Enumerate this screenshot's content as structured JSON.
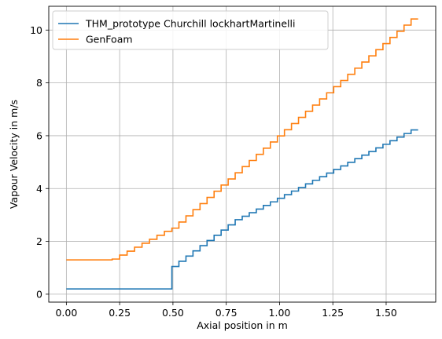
{
  "chart_data": {
    "type": "line",
    "step": true,
    "xlabel": "Axial position in m",
    "ylabel": "Vapour Velocity in m/s",
    "xlim": [
      -0.0825,
      1.7325
    ],
    "ylim": [
      -0.3,
      10.9
    ],
    "xticks": [
      0.0,
      0.25,
      0.5,
      0.75,
      1.0,
      1.25,
      1.5
    ],
    "xtick_labels": [
      "0.00",
      "0.25",
      "0.50",
      "0.75",
      "1.00",
      "1.25",
      "1.50"
    ],
    "yticks": [
      0,
      2,
      4,
      6,
      8,
      10
    ],
    "ytick_labels": [
      "0",
      "2",
      "4",
      "6",
      "8",
      "10"
    ],
    "grid": true,
    "legend": "upper-left",
    "series": [
      {
        "name": "THM_prototype Churchill lockhartMartinelli",
        "color": "#1f77b4",
        "segments": [
          {
            "x0": 0.0,
            "x1": 0.495,
            "y0": 0.2,
            "y1": 0.2,
            "steps": 1
          },
          {
            "x0": 0.495,
            "x1": 0.825,
            "y0": 1.05,
            "y1": 2.82,
            "steps": 10
          },
          {
            "x0": 0.825,
            "x1": 1.65,
            "y0": 2.95,
            "y1": 6.22,
            "steps": 25
          }
        ]
      },
      {
        "name": "GenFoam",
        "color": "#ff7f0e",
        "segments": [
          {
            "x0": 0.0,
            "x1": 0.215,
            "y0": 1.3,
            "y1": 1.3,
            "steps": 1
          },
          {
            "x0": 0.215,
            "x1": 0.495,
            "y0": 1.33,
            "y1": 2.38,
            "steps": 8
          },
          {
            "x0": 0.495,
            "x1": 1.65,
            "y0": 2.5,
            "y1": 10.42,
            "steps": 35
          }
        ]
      }
    ]
  }
}
